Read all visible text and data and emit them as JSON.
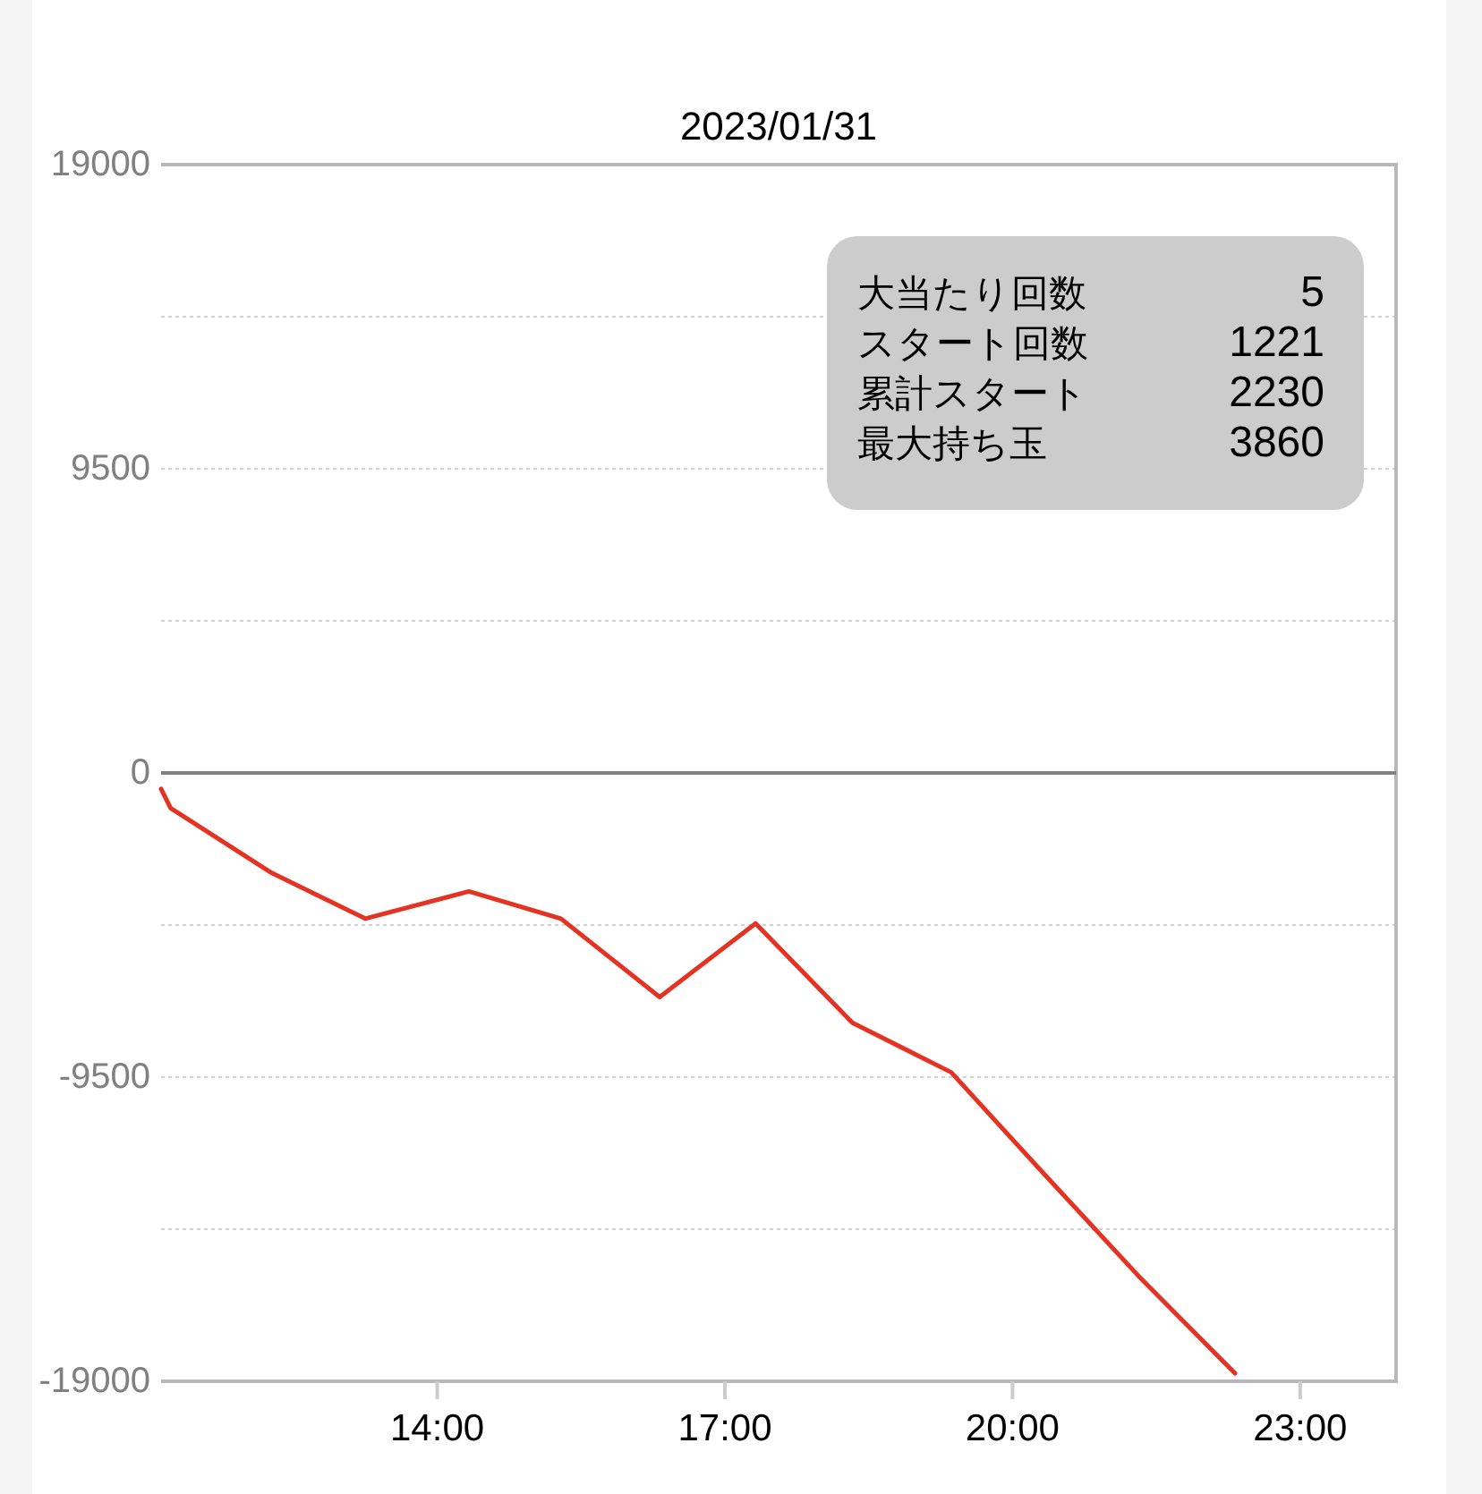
{
  "chart_data": {
    "type": "line",
    "title": "2023/01/31",
    "x": [
      11.12,
      11.22,
      12.26,
      13.25,
      14.33,
      15.29,
      16.32,
      17.32,
      18.33,
      19.36,
      20.29,
      21.31,
      22.32
    ],
    "series": [
      {
        "color": "#e53323",
        "values": [
          -500,
          -1100,
          -3100,
          -4550,
          -3700,
          -4550,
          -7000,
          -4700,
          -7800,
          -9350,
          -12400,
          -15700,
          -18750
        ]
      }
    ],
    "xlim": [
      11.12,
      24
    ],
    "xticks": [
      {
        "value": 14,
        "label": "14:00"
      },
      {
        "value": 17,
        "label": "17:00"
      },
      {
        "value": 20,
        "label": "20:00"
      },
      {
        "value": 23,
        "label": "23:00"
      }
    ],
    "ylim": [
      -19000,
      19000
    ],
    "yticks": [
      19000,
      {
        "value": 14250,
        "label": null
      },
      9500,
      {
        "value": 4750,
        "label": null
      },
      0,
      {
        "value": -4750,
        "label": null
      },
      -9500,
      {
        "value": -14250,
        "label": null
      },
      -19000
    ],
    "grid": "y",
    "ref_lines": [
      {
        "axis": "y",
        "value": 0,
        "color": "#808080"
      }
    ],
    "annotations": [
      "大当たり回数",
      "5",
      "スタート回数",
      "1221",
      "累計スタート",
      "2230",
      "最大持ち玉",
      "3860"
    ]
  }
}
